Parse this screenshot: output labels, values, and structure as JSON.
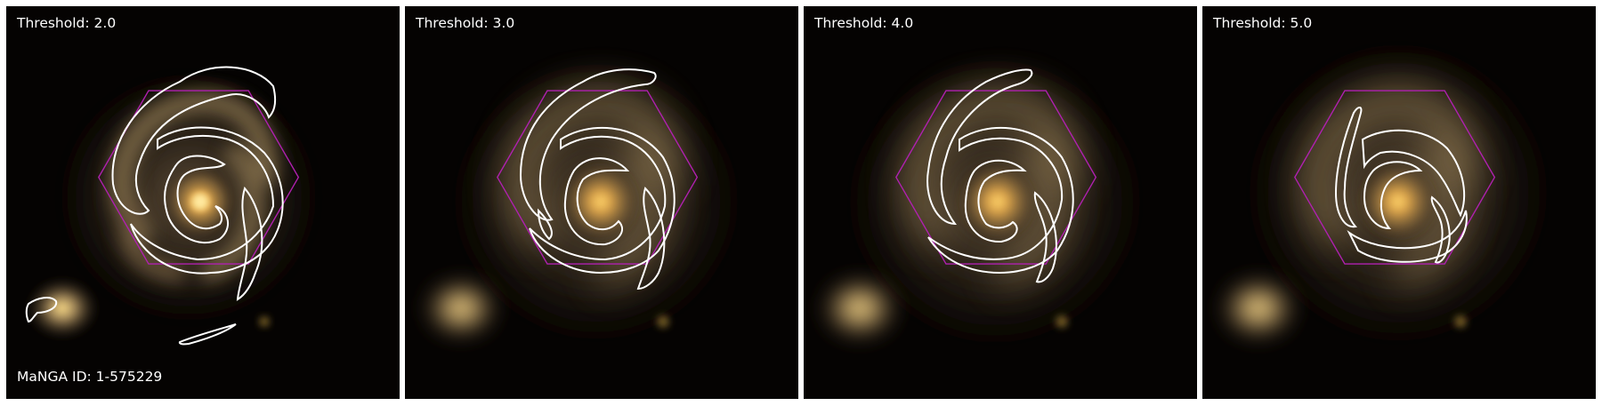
{
  "figure": {
    "manga_id": "MaNGA ID: 1-575229",
    "panels": [
      {
        "threshold_label": "Threshold: 2.0",
        "threshold": 2.0
      },
      {
        "threshold_label": "Threshold: 3.0",
        "threshold": 3.0
      },
      {
        "threshold_label": "Threshold: 4.0",
        "threshold": 4.0
      },
      {
        "threshold_label": "Threshold: 5.0",
        "threshold": 5.0
      }
    ]
  },
  "colors": {
    "background": "#050302",
    "galaxy_core": "#f0c060",
    "contour": "#ffffff",
    "hexagon": "#b020b0",
    "label_text": "#ffffff"
  }
}
